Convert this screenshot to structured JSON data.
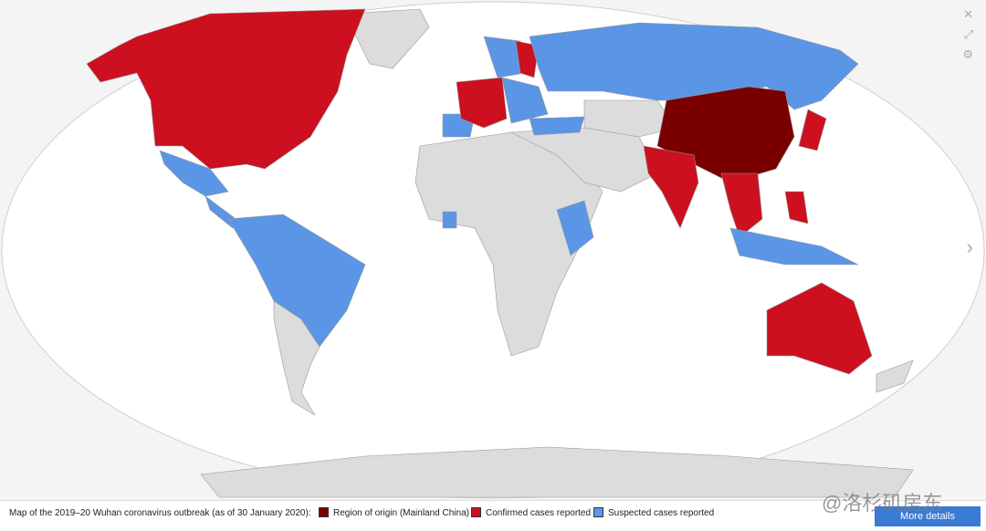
{
  "caption": "Map of the 2019–20 Wuhan coronavirus outbreak (as of 30 January 2020):",
  "legend": [
    {
      "label": "Region of origin (Mainland China)",
      "color": "#7a0000"
    },
    {
      "label": "Confirmed cases reported",
      "color": "#cc1020"
    },
    {
      "label": "Suspected cases reported",
      "color": "#5b95e6"
    }
  ],
  "button": "More details",
  "watermark": "@洛杉矶房东"
}
